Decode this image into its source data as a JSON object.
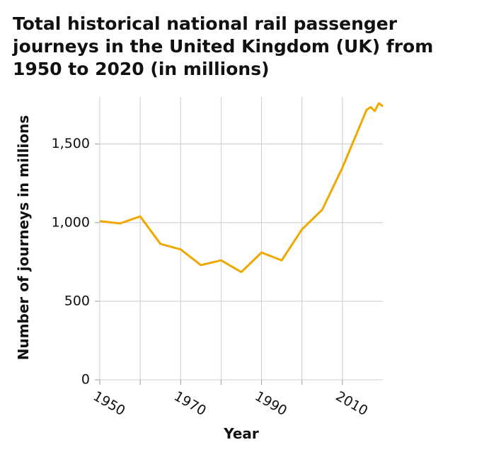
{
  "chart_data": {
    "type": "line",
    "title_lines": [
      "Total historical national rail passenger",
      "journeys in the United Kingdom (UK) from",
      "1950 to 2020 (in millions)"
    ],
    "x_label": "Year",
    "y_label": "Number of journeys in millions",
    "x": [
      1950,
      1955,
      1960,
      1965,
      1970,
      1975,
      1980,
      1985,
      1990,
      1995,
      2000,
      2005,
      2010,
      2016,
      2017,
      2018,
      2019,
      2020
    ],
    "values": [
      1010,
      995,
      1040,
      865,
      830,
      730,
      760,
      686,
      810,
      760,
      957,
      1082,
      1350,
      1718,
      1735,
      1710,
      1760,
      1740
    ],
    "color": "#f0a800",
    "xlim": [
      1950,
      2020
    ],
    "xticks": [
      1950,
      1970,
      1990,
      2010
    ],
    "xminorticks": [
      1960,
      1980,
      2000
    ],
    "ylim": [
      0,
      1800
    ],
    "yticks": [
      0,
      500,
      {
        "value": 1000,
        "label": "1,000"
      },
      {
        "value": 1500,
        "label": "1,500"
      }
    ],
    "grid": true
  }
}
